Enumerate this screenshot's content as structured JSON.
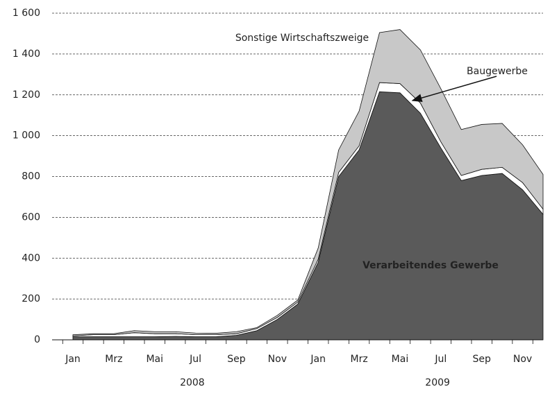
{
  "chart_data": {
    "type": "stacked_area",
    "categories": [
      "Jan",
      null,
      "Mrz",
      null,
      "Mai",
      null,
      "Jul",
      null,
      "Sep",
      null,
      "Nov",
      null,
      "Jan",
      null,
      "Mrz",
      null,
      "Mai",
      null,
      "Jul",
      null,
      "Sep",
      null,
      "Nov",
      null
    ],
    "groups": [
      "2008",
      "2009"
    ],
    "series": [
      {
        "name": "Verarbeitendes Gewerbe",
        "color": "#5a5a5a",
        "label_color": "#ffffff",
        "values": [
          15,
          15,
          15,
          15,
          15,
          17,
          15,
          15,
          22,
          45,
          100,
          175,
          380,
          800,
          930,
          1215,
          1210,
          1110,
          940,
          780,
          805,
          815,
          735,
          615
        ]
      },
      {
        "name": "Baugewerbe",
        "color": "#ffffff",
        "label_color": "#222222",
        "values": [
          5,
          10,
          10,
          20,
          15,
          13,
          10,
          10,
          8,
          10,
          10,
          10,
          15,
          20,
          20,
          45,
          45,
          50,
          30,
          25,
          30,
          30,
          35,
          25
        ]
      },
      {
        "name": "Sonstige Wirtschaftszweige",
        "color": "#c8c8c8",
        "label_color": "#222222",
        "values": [
          5,
          5,
          5,
          10,
          10,
          10,
          8,
          7,
          10,
          5,
          10,
          10,
          55,
          110,
          170,
          245,
          265,
          260,
          260,
          225,
          220,
          215,
          185,
          170
        ]
      }
    ],
    "ylim": [
      0,
      1600
    ],
    "yticks": [
      0,
      200,
      400,
      600,
      800,
      {
        "value": 1000,
        "label": "1 000"
      },
      {
        "value": 1200,
        "label": "1 200"
      },
      {
        "value": 1400,
        "label": "1 400"
      },
      {
        "value": 1600,
        "label": "1 600"
      }
    ],
    "grid": true
  }
}
